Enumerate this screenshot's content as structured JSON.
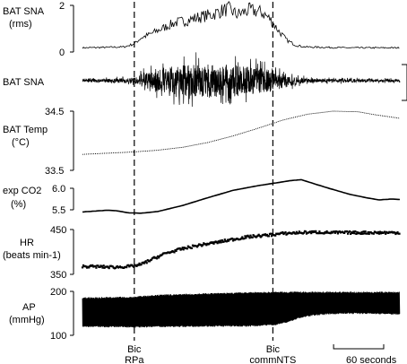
{
  "chart_data": [
    {
      "type": "line",
      "id": "bat_sna_rms",
      "ylabel_lines": [
        "BAT SNA",
        "(rms)"
      ],
      "yticks": [
        "2",
        "0"
      ],
      "ylim": [
        0,
        2
      ],
      "x_seconds": [
        0,
        30,
        50,
        62,
        70,
        80,
        95,
        110,
        125,
        140,
        155,
        165,
        175,
        185,
        200,
        215,
        225,
        235,
        245,
        255,
        265,
        290,
        320,
        350,
        380
      ],
      "values": [
        0.18,
        0.2,
        0.22,
        0.35,
        0.6,
        0.75,
        1.0,
        1.25,
        1.35,
        1.5,
        1.6,
        1.75,
        1.85,
        1.6,
        1.8,
        1.7,
        1.4,
        0.9,
        0.5,
        0.3,
        0.22,
        0.2,
        0.18,
        0.18,
        0.18
      ]
    },
    {
      "type": "line",
      "id": "bat_sna_raw",
      "ylabel_lines": [
        "BAT SNA"
      ],
      "envelope_x_seconds": [
        0,
        60,
        75,
        100,
        130,
        160,
        190,
        220,
        235,
        250,
        270,
        380
      ],
      "envelope_amplitude": [
        0.08,
        0.15,
        0.45,
        0.75,
        0.95,
        1.0,
        0.9,
        0.75,
        0.5,
        0.3,
        0.12,
        0.08
      ]
    },
    {
      "type": "line",
      "id": "bat_temp",
      "ylabel_lines": [
        "BAT Temp",
        "(°C)"
      ],
      "yticks": [
        "34.5",
        "33.5"
      ],
      "ylim": [
        33.5,
        34.5
      ],
      "x_seconds": [
        0,
        30,
        60,
        90,
        120,
        150,
        180,
        210,
        240,
        270,
        300,
        330,
        350,
        380
      ],
      "values": [
        33.77,
        33.79,
        33.81,
        33.84,
        33.89,
        33.97,
        34.08,
        34.21,
        34.35,
        34.45,
        34.5,
        34.49,
        34.44,
        34.38
      ]
    },
    {
      "type": "line",
      "id": "exp_co2",
      "ylabel_lines": [
        "exp CO2",
        "(%)"
      ],
      "yticks": [
        "6.0",
        "5.5"
      ],
      "ylim": [
        5.35,
        6.15
      ],
      "x_seconds": [
        0,
        15,
        30,
        40,
        55,
        70,
        90,
        120,
        150,
        180,
        210,
        230,
        250,
        262,
        275,
        295,
        320,
        340,
        355,
        370,
        380
      ],
      "values": [
        5.45,
        5.47,
        5.49,
        5.48,
        5.43,
        5.42,
        5.46,
        5.6,
        5.78,
        5.95,
        6.06,
        6.12,
        6.18,
        6.2,
        6.12,
        6.0,
        5.86,
        5.78,
        5.73,
        5.75,
        5.74
      ]
    },
    {
      "type": "scatter",
      "id": "hr",
      "ylabel_lines": [
        "HR",
        "(beats min-1)"
      ],
      "yticks": [
        "450",
        "350"
      ],
      "ylim": [
        350,
        450
      ],
      "x_seconds": [
        0,
        20,
        40,
        60,
        70,
        85,
        100,
        120,
        140,
        160,
        180,
        200,
        220,
        240,
        260,
        280,
        300,
        320,
        340,
        360,
        380
      ],
      "values": [
        368,
        367,
        366,
        368,
        372,
        385,
        397,
        407,
        415,
        421,
        428,
        434,
        437,
        441,
        443,
        444,
        443,
        443,
        443,
        443,
        443
      ]
    },
    {
      "type": "area",
      "id": "ap",
      "ylabel_lines": [
        "AP",
        "(mmHg)"
      ],
      "yticks": [
        "200",
        "100"
      ],
      "ylim": [
        100,
        200
      ],
      "x_seconds": [
        0,
        60,
        100,
        160,
        200,
        230,
        245,
        260,
        280,
        310,
        340,
        380
      ],
      "systolic": [
        185,
        187,
        192,
        195,
        197,
        198,
        198,
        198,
        198,
        198,
        198,
        198
      ],
      "diastolic": [
        120,
        119,
        120,
        121,
        121,
        124,
        130,
        140,
        147,
        150,
        150,
        148
      ]
    }
  ],
  "markers": [
    {
      "line1": "Bic",
      "line2": "RPa",
      "x_seconds": 62
    },
    {
      "line1": "Bic",
      "line2": "commNTS",
      "x_seconds": 228
    }
  ],
  "scale_bar": {
    "label": "60 seconds",
    "seconds": 60
  }
}
